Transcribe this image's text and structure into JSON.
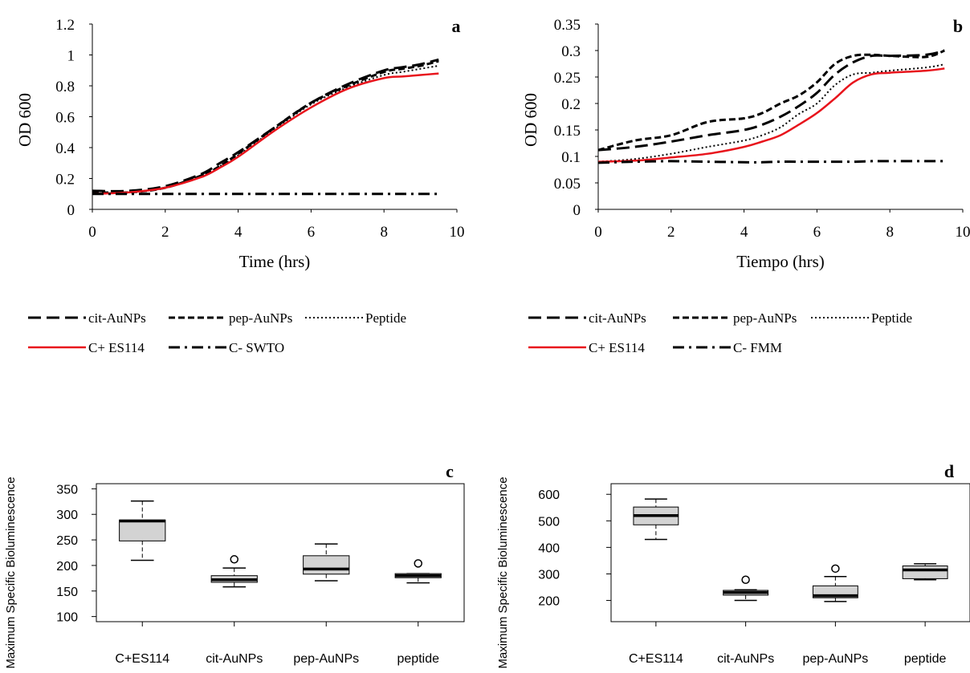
{
  "chart_data": [
    {
      "type": "line",
      "panel_label": "a",
      "xlabel": "Time (hrs)",
      "ylabel": "OD 600",
      "xlim": [
        0,
        10
      ],
      "ylim": [
        0,
        1.2
      ],
      "xticks": [
        "0",
        "2",
        "4",
        "6",
        "8",
        "10"
      ],
      "yticks": [
        "0",
        "0.2",
        "0.4",
        "0.6",
        "0.8",
        "1",
        "1.2"
      ],
      "x": [
        0,
        1,
        2,
        3,
        3.5,
        4,
        5,
        6,
        7,
        8,
        8.5,
        9,
        9.5
      ],
      "series": [
        {
          "name": "cit-AuNPs",
          "style": "longdash",
          "color": "#000000",
          "values": [
            0.12,
            0.12,
            0.15,
            0.23,
            0.3,
            0.37,
            0.53,
            0.69,
            0.81,
            0.9,
            0.92,
            0.94,
            0.97
          ]
        },
        {
          "name": "pep-AuNPs",
          "style": "dash",
          "color": "#000000",
          "values": [
            0.11,
            0.11,
            0.14,
            0.22,
            0.28,
            0.36,
            0.53,
            0.69,
            0.8,
            0.89,
            0.91,
            0.93,
            0.96
          ]
        },
        {
          "name": "Peptide",
          "style": "dot",
          "color": "#000000",
          "values": [
            0.1,
            0.11,
            0.14,
            0.22,
            0.28,
            0.35,
            0.52,
            0.68,
            0.79,
            0.87,
            0.89,
            0.91,
            0.93
          ]
        },
        {
          "name": "C+ ES114",
          "style": "solid",
          "color": "#e8141c",
          "values": [
            0.1,
            0.11,
            0.14,
            0.21,
            0.27,
            0.34,
            0.51,
            0.66,
            0.78,
            0.85,
            0.86,
            0.87,
            0.88
          ]
        },
        {
          "name": "C- SWTO",
          "style": "dashdot",
          "color": "#000000",
          "values": [
            0.1,
            0.1,
            0.1,
            0.1,
            0.1,
            0.1,
            0.1,
            0.1,
            0.1,
            0.1,
            0.1,
            0.1,
            0.1
          ]
        }
      ]
    },
    {
      "type": "line",
      "panel_label": "b",
      "xlabel": "Tiempo (hrs)",
      "ylabel": "OD 600",
      "xlim": [
        0,
        10
      ],
      "ylim": [
        0,
        0.35
      ],
      "xticks": [
        "0",
        "2",
        "4",
        "6",
        "8",
        "10"
      ],
      "yticks": [
        "0",
        "0.05",
        "0.1",
        "0.15",
        "0.2",
        "0.25",
        "0.3",
        "0.35"
      ],
      "x": [
        0,
        1,
        2,
        3,
        4,
        4.5,
        5,
        5.5,
        6,
        6.5,
        7,
        7.5,
        8,
        9,
        9.5
      ],
      "series": [
        {
          "name": "cit-AuNPs",
          "style": "longdash",
          "color": "#000000",
          "values": [
            0.112,
            0.118,
            0.128,
            0.14,
            0.15,
            0.16,
            0.175,
            0.195,
            0.22,
            0.255,
            0.278,
            0.29,
            0.29,
            0.292,
            0.3
          ]
        },
        {
          "name": "pep-AuNPs",
          "style": "dash",
          "color": "#000000",
          "values": [
            0.112,
            0.13,
            0.14,
            0.165,
            0.172,
            0.182,
            0.2,
            0.215,
            0.24,
            0.275,
            0.29,
            0.292,
            0.29,
            0.288,
            0.3
          ]
        },
        {
          "name": "Peptide",
          "style": "dot",
          "color": "#000000",
          "values": [
            0.09,
            0.095,
            0.105,
            0.118,
            0.13,
            0.14,
            0.155,
            0.18,
            0.2,
            0.235,
            0.255,
            0.258,
            0.262,
            0.268,
            0.274
          ]
        },
        {
          "name": "C+ ES114",
          "style": "solid",
          "color": "#e8141c",
          "values": [
            0.09,
            0.092,
            0.098,
            0.105,
            0.118,
            0.128,
            0.14,
            0.16,
            0.182,
            0.21,
            0.24,
            0.255,
            0.258,
            0.262,
            0.266
          ]
        },
        {
          "name": "C- FMM",
          "style": "dashdot",
          "color": "#000000",
          "values": [
            0.088,
            0.09,
            0.091,
            0.09,
            0.089,
            0.089,
            0.09,
            0.09,
            0.09,
            0.09,
            0.09,
            0.091,
            0.091,
            0.091,
            0.091
          ]
        }
      ]
    },
    {
      "type": "box",
      "panel_label": "c",
      "ylabel": "Maximum Specific Bioluminescence",
      "ylim": [
        90,
        360
      ],
      "yticks": [
        "100",
        "150",
        "200",
        "250",
        "300",
        "350"
      ],
      "categories": [
        "C+ES114",
        "cit-AuNPs",
        "pep-AuNPs",
        "peptide"
      ],
      "boxes": [
        {
          "min": 210,
          "q1": 248,
          "median": 287,
          "q3": 289,
          "max": 326,
          "outliers": []
        },
        {
          "min": 158,
          "q1": 167,
          "median": 172,
          "q3": 180,
          "max": 195,
          "outliers": [
            212
          ]
        },
        {
          "min": 170,
          "q1": 183,
          "median": 193,
          "q3": 219,
          "max": 242,
          "outliers": []
        },
        {
          "min": 166,
          "q1": 176,
          "median": 180,
          "q3": 184,
          "max": 184,
          "outliers": [
            204
          ]
        }
      ]
    },
    {
      "type": "box",
      "panel_label": "d",
      "ylabel": "Maximum Specific Bioluminescence",
      "ylim": [
        120,
        640
      ],
      "yticks": [
        "200",
        "300",
        "400",
        "500",
        "600"
      ],
      "categories": [
        "C+ES114",
        "cit-AuNPs",
        "pep-AuNPs",
        "peptide"
      ],
      "boxes": [
        {
          "min": 430,
          "q1": 485,
          "median": 520,
          "q3": 552,
          "max": 582,
          "outliers": []
        },
        {
          "min": 200,
          "q1": 220,
          "median": 230,
          "q3": 238,
          "max": 240,
          "outliers": [
            278
          ]
        },
        {
          "min": 196,
          "q1": 210,
          "median": 218,
          "q3": 255,
          "max": 290,
          "outliers": [
            320
          ]
        },
        {
          "min": 278,
          "q1": 282,
          "median": 315,
          "q3": 330,
          "max": 338,
          "outliers": []
        }
      ]
    }
  ]
}
